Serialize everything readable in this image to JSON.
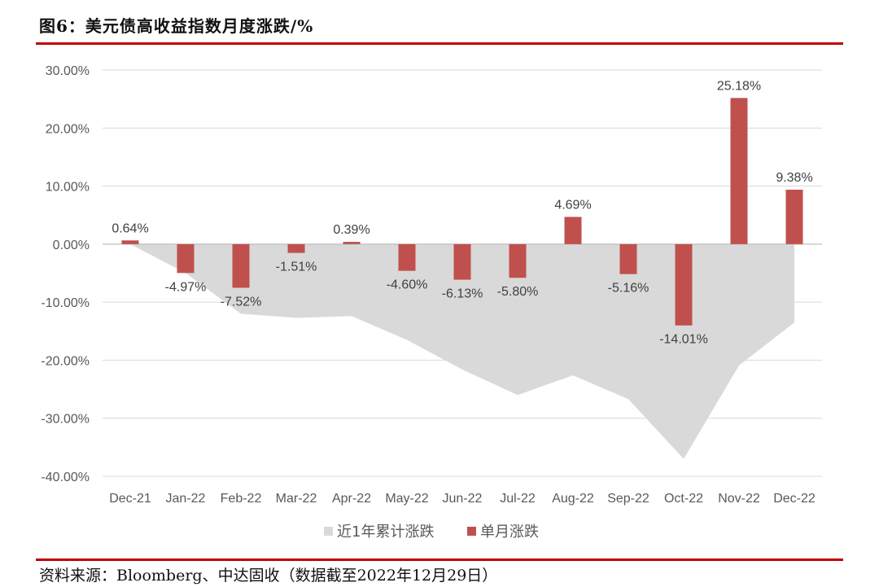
{
  "figure": {
    "title": "图6：美元债高收益指数月度涨跌/%",
    "source": "资料来源：Bloomberg、中达固收（数据截至2022年12月29日）"
  },
  "colors": {
    "bar": "#c0504d",
    "area": "#d9d9d9",
    "rule": "#c00000",
    "grid": "#d9d9d9"
  },
  "chart_data": {
    "type": "bar",
    "categories": [
      "Dec-21",
      "Jan-22",
      "Feb-22",
      "Mar-22",
      "Apr-22",
      "May-22",
      "Jun-22",
      "Jul-22",
      "Aug-22",
      "Sep-22",
      "Oct-22",
      "Nov-22",
      "Dec-22"
    ],
    "series": [
      {
        "name": "近1年累计涨跌",
        "type": "area",
        "values": [
          0.0,
          -4.97,
          -12.0,
          -12.7,
          -12.4,
          -16.5,
          -21.6,
          -26.0,
          -22.6,
          -26.7,
          -37.0,
          -20.9,
          -13.5
        ]
      },
      {
        "name": "单月涨跌",
        "type": "bar",
        "values": [
          0.64,
          -4.97,
          -7.52,
          -1.51,
          0.39,
          -4.6,
          -6.13,
          -5.8,
          4.69,
          -5.16,
          -14.01,
          25.18,
          9.38
        ],
        "labels": [
          "0.64%",
          "-4.97%",
          "-7.52%",
          "-1.51%",
          "0.39%",
          "-4.60%",
          "-6.13%",
          "-5.80%",
          "4.69%",
          "-5.16%",
          "-14.01%",
          "25.18%",
          "9.38%"
        ]
      }
    ],
    "yticks": [
      "30.00%",
      "20.00%",
      "10.00%",
      "0.00%",
      "-10.00%",
      "-20.00%",
      "-30.00%",
      "-40.00%"
    ],
    "ylim": [
      -40,
      30
    ],
    "grid": true,
    "legend": "bottom"
  }
}
